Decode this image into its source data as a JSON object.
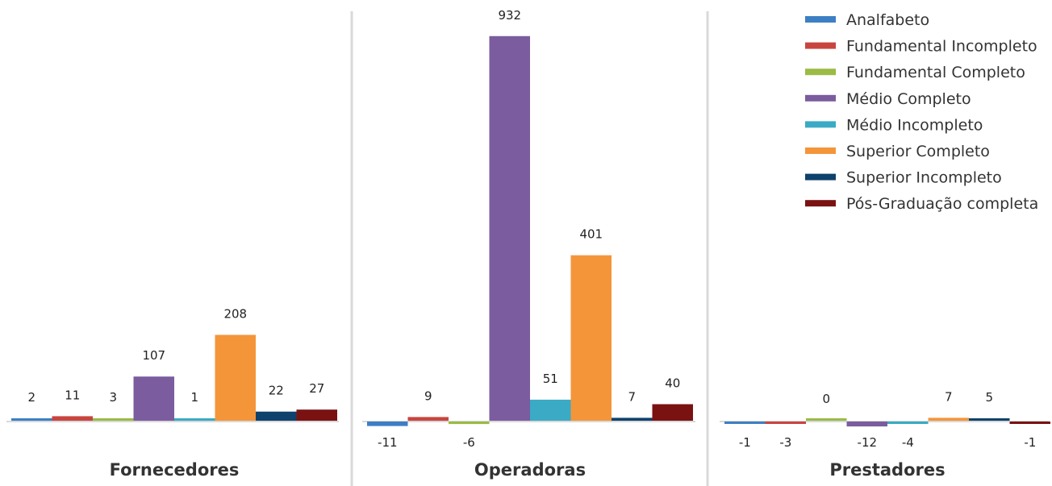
{
  "chart_data": {
    "type": "bar",
    "categories": [
      "Fornecedores",
      "Operadoras",
      "Prestadores"
    ],
    "series": [
      {
        "name": "Analfabeto",
        "color": "#3d7fc3",
        "values": [
          2,
          -11,
          -1
        ]
      },
      {
        "name": "Fundamental Incompleto",
        "color": "#c8453f",
        "values": [
          11,
          9,
          -3
        ]
      },
      {
        "name": "Fundamental Completo",
        "color": "#9bbb45",
        "values": [
          3,
          -6,
          0
        ]
      },
      {
        "name": "Médio Completo",
        "color": "#7b5c9e",
        "values": [
          107,
          932,
          -12
        ]
      },
      {
        "name": "Médio Incompleto",
        "color": "#3aaac5",
        "values": [
          1,
          51,
          -4
        ]
      },
      {
        "name": "Superior Completo",
        "color": "#f4953a",
        "values": [
          208,
          401,
          7
        ]
      },
      {
        "name": "Superior Incompleto",
        "color": "#0e416c",
        "values": [
          22,
          7,
          5
        ]
      },
      {
        "name": "Pós-Graduação completa",
        "color": "#7a1212",
        "values": [
          27,
          40,
          -1
        ]
      }
    ],
    "legend": "top-right",
    "grid": false,
    "title": "",
    "xlabel": "",
    "ylabel": ""
  }
}
